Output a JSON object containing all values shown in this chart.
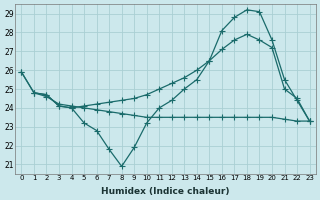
{
  "xlabel": "Humidex (Indice chaleur)",
  "bg_color": "#cce8ec",
  "grid_color": "#aacfd4",
  "line_color": "#1a6b6b",
  "xlim": [
    -0.5,
    23.5
  ],
  "ylim": [
    20.5,
    29.5
  ],
  "yticks": [
    21,
    22,
    23,
    24,
    25,
    26,
    27,
    28,
    29
  ],
  "xticks": [
    0,
    1,
    2,
    3,
    4,
    5,
    6,
    7,
    8,
    9,
    10,
    11,
    12,
    13,
    14,
    15,
    16,
    17,
    18,
    19,
    20,
    21,
    22,
    23
  ],
  "lineA_x": [
    0,
    1,
    2,
    3,
    4,
    5,
    6,
    7,
    8,
    9,
    10,
    11,
    12,
    13,
    14,
    15,
    16,
    17,
    18,
    19,
    20,
    21,
    22,
    23
  ],
  "lineA_y": [
    25.9,
    24.8,
    24.7,
    24.1,
    24.0,
    24.1,
    24.2,
    24.3,
    24.4,
    24.5,
    24.7,
    25.0,
    25.3,
    25.6,
    26.0,
    26.5,
    27.1,
    27.6,
    27.9,
    27.6,
    27.2,
    25.0,
    24.5,
    23.3
  ],
  "lineB_x": [
    0,
    1,
    2,
    3,
    4,
    5,
    6,
    7,
    8,
    9,
    10,
    11,
    12,
    13,
    14,
    15,
    16,
    17,
    18,
    19,
    20,
    21,
    22,
    23
  ],
  "lineB_y": [
    25.9,
    24.8,
    24.7,
    24.1,
    24.0,
    23.2,
    22.8,
    21.8,
    20.9,
    21.9,
    23.2,
    24.0,
    24.4,
    25.0,
    25.5,
    26.5,
    28.1,
    28.8,
    29.2,
    29.1,
    27.6,
    25.5,
    24.4,
    23.3
  ],
  "lineC_x": [
    1,
    2,
    3,
    4,
    5,
    6,
    7,
    8,
    9,
    10,
    11,
    12,
    13,
    14,
    15,
    16,
    17,
    18,
    19,
    20,
    21,
    22,
    23
  ],
  "lineC_y": [
    24.8,
    24.6,
    24.2,
    24.1,
    24.0,
    23.9,
    23.8,
    23.7,
    23.6,
    23.5,
    23.5,
    23.5,
    23.5,
    23.5,
    23.5,
    23.5,
    23.5,
    23.5,
    23.5,
    23.5,
    23.4,
    23.3,
    23.3
  ]
}
